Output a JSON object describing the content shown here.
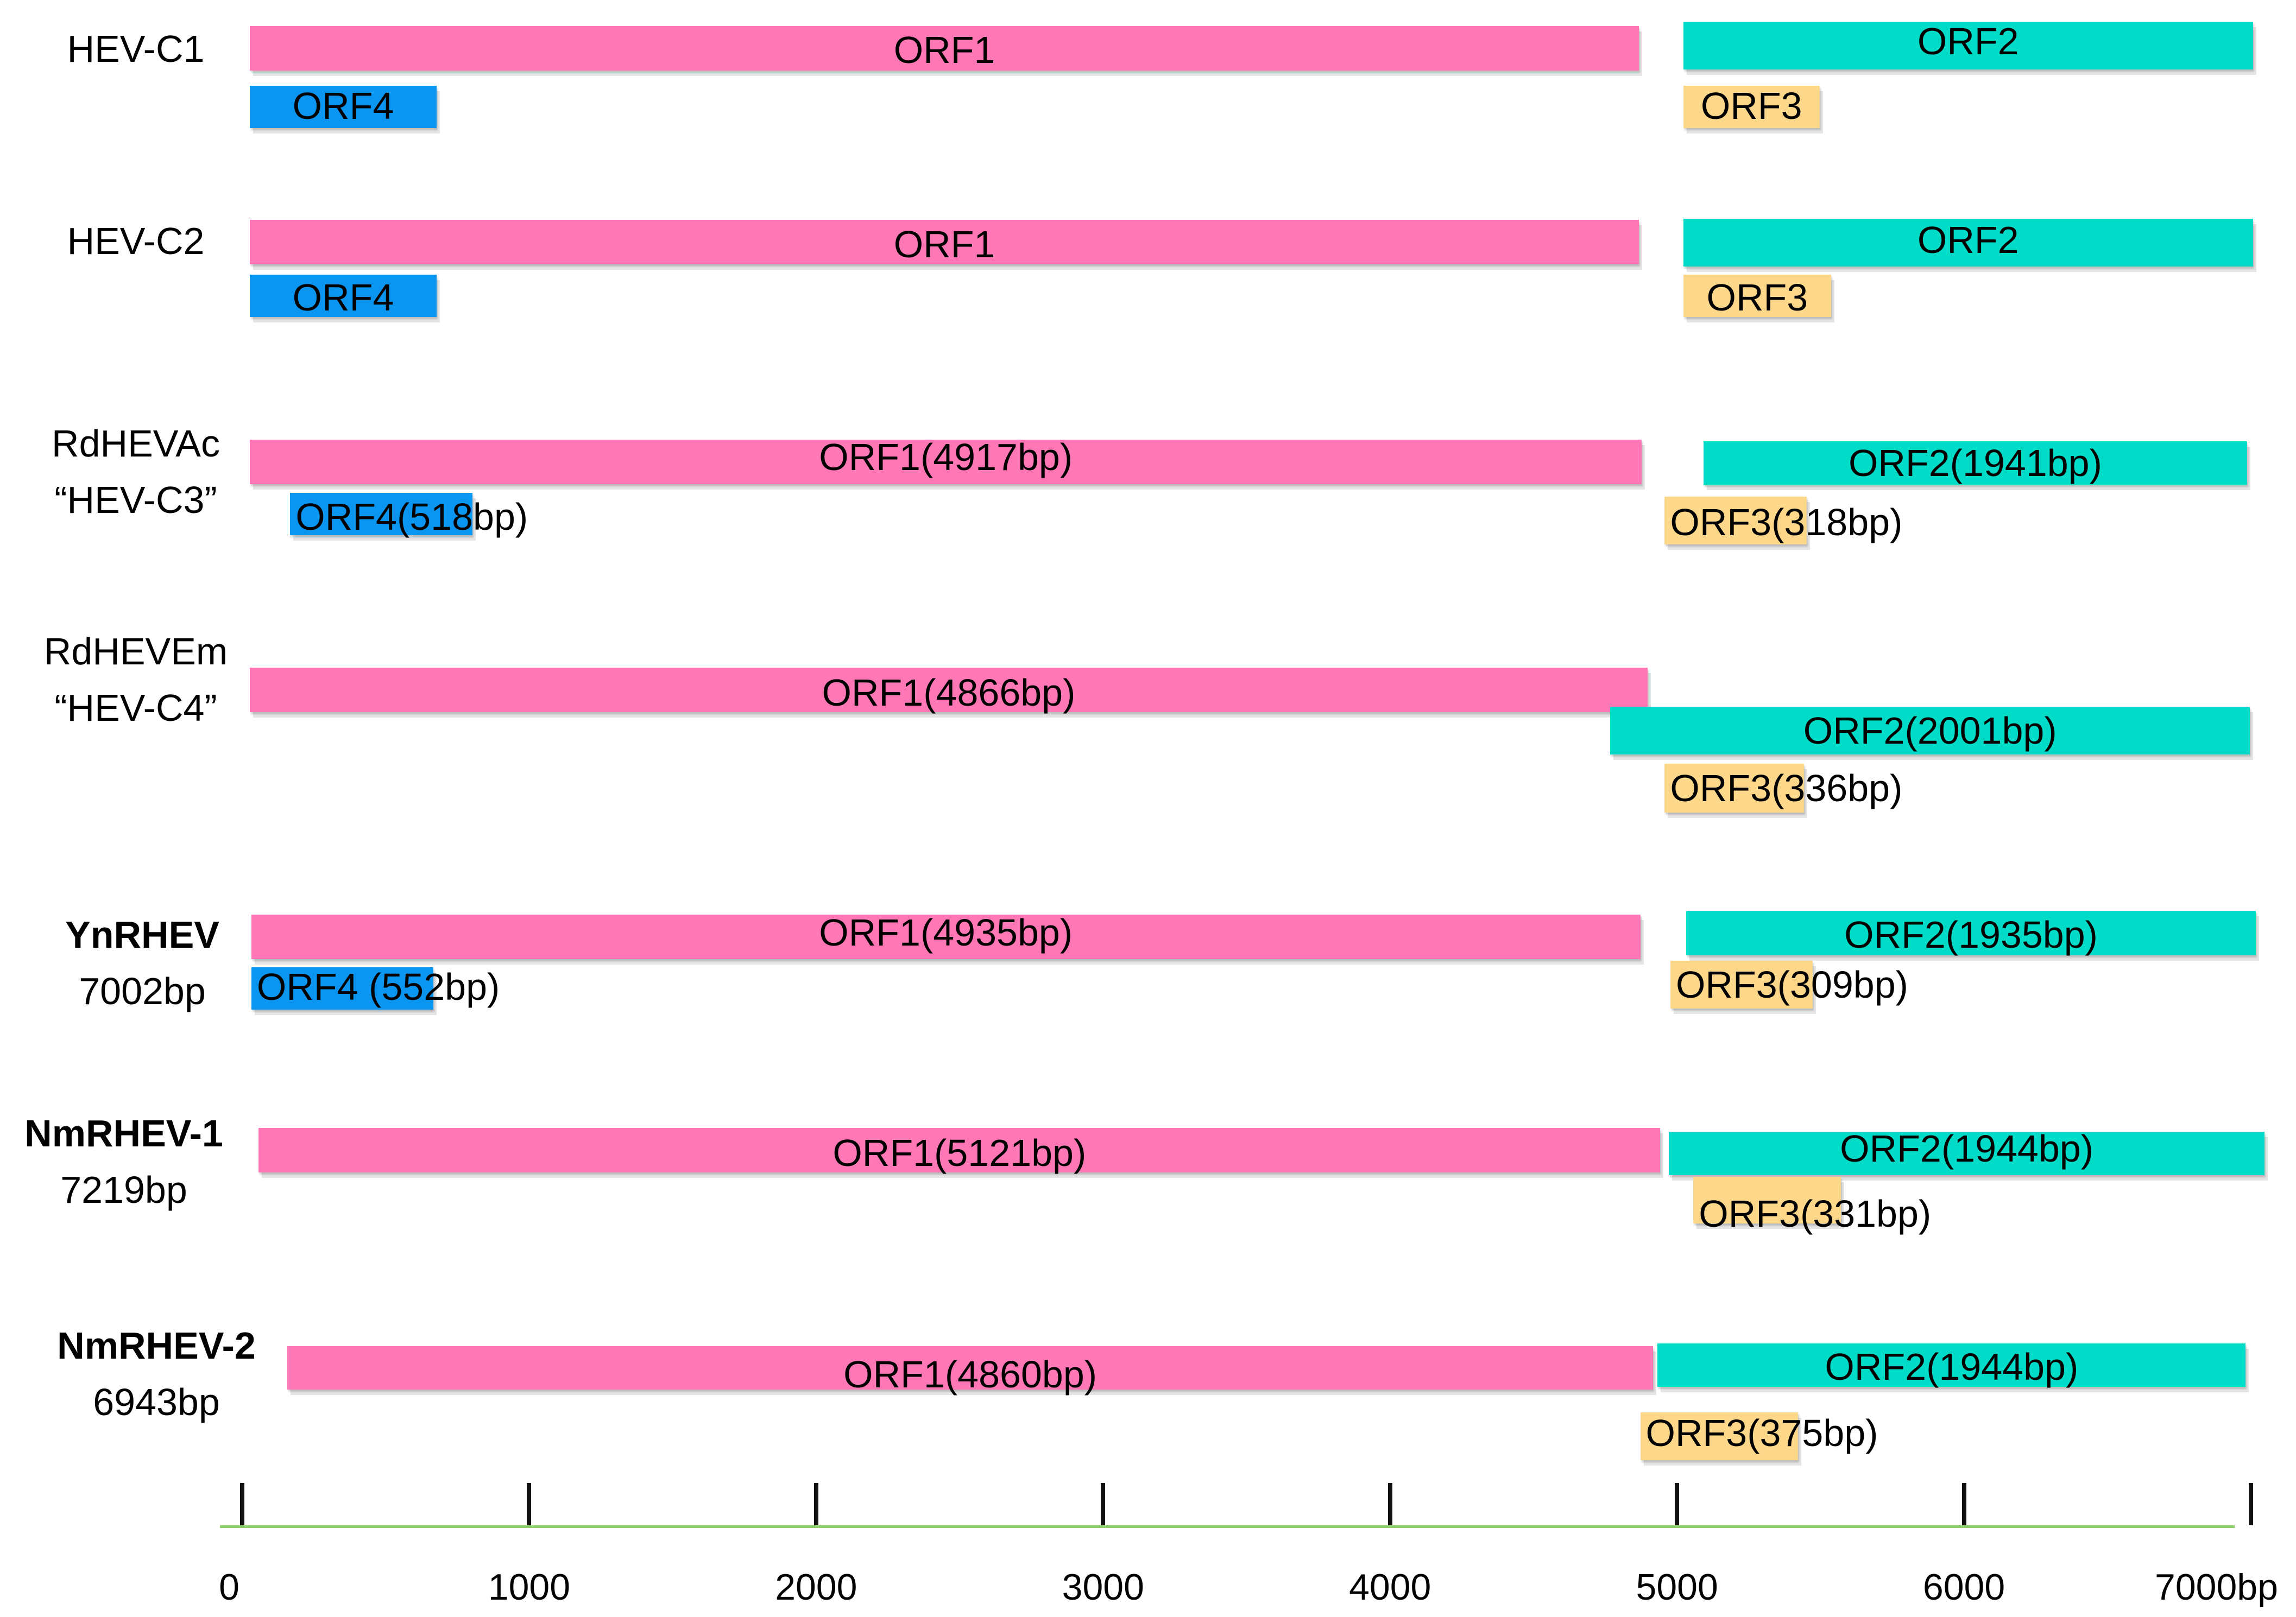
{
  "colors": {
    "ORF1": "#ff78b5",
    "ORF2": "#00dcc8",
    "ORF3": "#fdd78a",
    "ORF4": "#0a96f0",
    "axis": "#8cd36b"
  },
  "genomes": [
    {
      "name": "HEV-C1",
      "size_label": "",
      "bold": false,
      "orfs": [
        {
          "id": "ORF1",
          "label": "ORF1",
          "start": 80,
          "end": 4920
        },
        {
          "id": "ORF4",
          "label": "ORF4",
          "start": 80,
          "end": 730
        },
        {
          "id": "ORF2",
          "label": "ORF2",
          "start": 5075,
          "end": 7060
        },
        {
          "id": "ORF3",
          "label": "ORF3",
          "start": 5075,
          "end": 5550
        }
      ]
    },
    {
      "name": "HEV-C2",
      "size_label": "",
      "bold": false,
      "orfs": [
        {
          "id": "ORF1",
          "label": "ORF1",
          "start": 80,
          "end": 4920
        },
        {
          "id": "ORF4",
          "label": "ORF4",
          "start": 80,
          "end": 730
        },
        {
          "id": "ORF2",
          "label": "ORF2",
          "start": 5075,
          "end": 7060
        },
        {
          "id": "ORF3",
          "label": "ORF3",
          "start": 5075,
          "end": 5590
        }
      ]
    },
    {
      "name": "RdHEVAc",
      "size_label": "“HEV-C3”",
      "bold": false,
      "orfs": [
        {
          "id": "ORF1",
          "label": "ORF1(4917bp)",
          "start": 80,
          "end": 4930
        },
        {
          "id": "ORF4",
          "label": "ORF4(518bp)",
          "start": 220,
          "end": 855
        },
        {
          "id": "ORF2",
          "label": "ORF2(1941bp)",
          "start": 5145,
          "end": 7040
        },
        {
          "id": "ORF3",
          "label": "ORF3(318bp)",
          "start": 5010,
          "end": 5505
        }
      ]
    },
    {
      "name": "RdHEVEm",
      "size_label": "“HEV-C4”",
      "bold": false,
      "orfs": [
        {
          "id": "ORF1",
          "label": "ORF1(4866bp)",
          "start": 80,
          "end": 4950
        },
        {
          "id": "ORF2",
          "label": "ORF2(2001bp)",
          "start": 4820,
          "end": 7050
        },
        {
          "id": "ORF3",
          "label": "ORF3(336bp)",
          "start": 5010,
          "end": 5495
        }
      ]
    },
    {
      "name": "YnRHEV",
      "size_label": "7002bp",
      "bold": true,
      "orfs": [
        {
          "id": "ORF1",
          "label": "ORF1(4935bp)",
          "start": 85,
          "end": 4925
        },
        {
          "id": "ORF4",
          "label": "ORF4 (552bp)",
          "start": 85,
          "end": 720
        },
        {
          "id": "ORF2",
          "label": "ORF2(1935bp)",
          "start": 5085,
          "end": 7070
        },
        {
          "id": "ORF3",
          "label": "ORF3(309bp)",
          "start": 5030,
          "end": 5525
        }
      ]
    },
    {
      "name": "NmRHEV-1",
      "size_label": "7219bp",
      "bold": true,
      "orfs": [
        {
          "id": "ORF1",
          "label": "ORF1(5121bp)",
          "start": 110,
          "end": 4995
        },
        {
          "id": "ORF2",
          "label": "ORF2(1944bp)",
          "start": 5025,
          "end": 7100
        },
        {
          "id": "ORF3",
          "label": "ORF3(331bp)",
          "start": 5110,
          "end": 5625
        }
      ]
    },
    {
      "name": "NmRHEV-2",
      "size_label": "6943bp",
      "bold": true,
      "orfs": [
        {
          "id": "ORF1",
          "label": "ORF1(4860bp)",
          "start": 210,
          "end": 4970
        },
        {
          "id": "ORF2",
          "label": "ORF2(1944bp)",
          "start": 4985,
          "end": 7035
        },
        {
          "id": "ORF3",
          "label": "ORF3(375bp)",
          "start": 4925,
          "end": 5475
        }
      ]
    }
  ],
  "axis": {
    "min": 0,
    "max": 7000,
    "ticks": [
      "0",
      "1000",
      "2000",
      "3000",
      "4000",
      "5000",
      "6000",
      "7000bp"
    ]
  }
}
